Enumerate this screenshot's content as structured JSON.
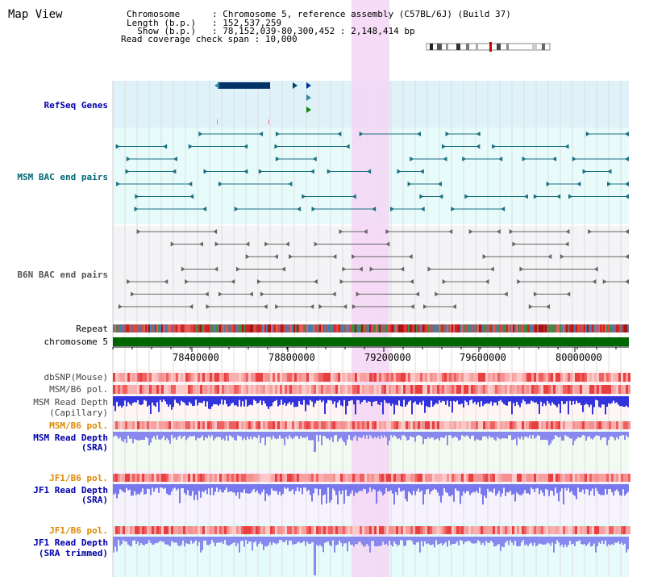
{
  "title": "Map View",
  "header": {
    "chromosome_key": "Chromosome",
    "chromosome_val": "Chromosome 5, reference assembly (C57BL/6J) (Build 37)",
    "length_key": "Length (b.p.)",
    "length_val": "152,537,259",
    "show_key": "Show (b.p.)",
    "show_val": "78,152,039-80,300,452 : 2,148,414 bp",
    "coverage_key": "Read coverage check span",
    "coverage_val": "10,000"
  },
  "tracks": {
    "refseq": "RefSeq Genes",
    "msm_bac": "MSM BAC end pairs",
    "b6n_bac": "B6N BAC end pairs",
    "repeat": "Repeat",
    "chromosome": "chromosome 5",
    "dbsnp": "dbSNP(Mouse)",
    "msm_b6_pol_1": "MSM/B6 pol.",
    "msm_read_depth_cap_1": "MSM Read Depth",
    "msm_read_depth_cap_2": "(Capillary)",
    "msm_b6_pol_2": "MSM/B6 pol.",
    "msm_read_depth_sra_1": "MSM Read Depth",
    "msm_read_depth_sra_2": "(SRA)",
    "jf1_b6_pol_1": "JF1/B6 pol.",
    "jf1_read_depth_sra_1": "JF1 Read Depth",
    "jf1_read_depth_sra_2": "(SRA)",
    "jf1_b6_pol_2": "JF1/B6 pol.",
    "jf1_read_depth_trim_1": "JF1 Read Depth",
    "jf1_read_depth_trim_2": "(SRA trimmed)"
  },
  "axis": {
    "ticks": [
      "78400000",
      "78800000",
      "79200000",
      "79600000",
      "80000000"
    ]
  },
  "colors": {
    "refseq_label": "#0000aa",
    "msm_bac_label": "#006677",
    "b6n_bac_label": "#555555",
    "pol_orange": "#dd8800",
    "depth_blue": "#0000aa",
    "highlight": "#f5d6f5"
  }
}
